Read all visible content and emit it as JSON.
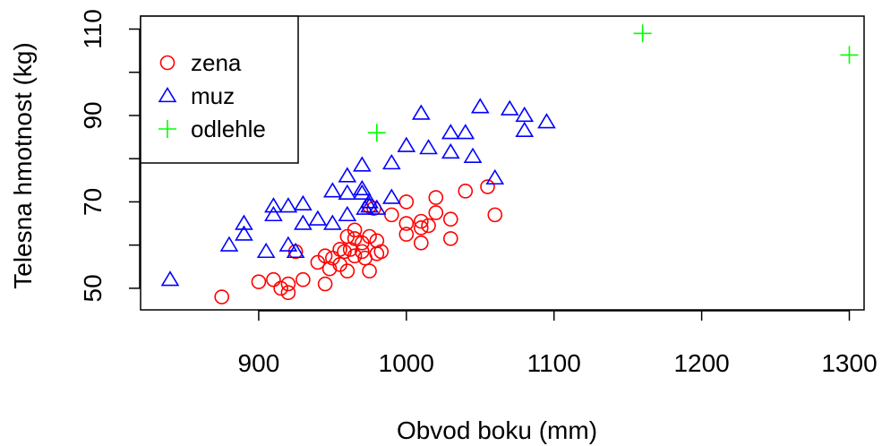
{
  "chart_data": {
    "type": "scatter",
    "title": "",
    "xlabel": "Obvod boku (mm)",
    "ylabel": "Telesna hmotnost (kg)",
    "xlim": [
      820,
      1310
    ],
    "ylim": [
      45,
      113
    ],
    "xticks": [
      900,
      1000,
      1100,
      1200,
      1300
    ],
    "yticks": [
      50,
      70,
      90,
      110
    ],
    "grid": false,
    "legend_position": "top-left",
    "series": [
      {
        "name": "zena",
        "marker": "circle",
        "color": "#ff0000",
        "points": [
          [
            875,
            48
          ],
          [
            900,
            51.5
          ],
          [
            910,
            52
          ],
          [
            915,
            50
          ],
          [
            920,
            49
          ],
          [
            920,
            51
          ],
          [
            925,
            58.5
          ],
          [
            930,
            52
          ],
          [
            940,
            56
          ],
          [
            945,
            51
          ],
          [
            945,
            57.5
          ],
          [
            948,
            54.5
          ],
          [
            950,
            57
          ],
          [
            955,
            55.5
          ],
          [
            955,
            59
          ],
          [
            958,
            58.5
          ],
          [
            960,
            62
          ],
          [
            960,
            54
          ],
          [
            962,
            59
          ],
          [
            965,
            63.5
          ],
          [
            965,
            61.5
          ],
          [
            965,
            57.5
          ],
          [
            970,
            60.5
          ],
          [
            970,
            58.5
          ],
          [
            972,
            57
          ],
          [
            975,
            62
          ],
          [
            975,
            54
          ],
          [
            975,
            69
          ],
          [
            978,
            68.5
          ],
          [
            980,
            61
          ],
          [
            980,
            58
          ],
          [
            983,
            58.5
          ],
          [
            990,
            67
          ],
          [
            1000,
            70
          ],
          [
            1000,
            65
          ],
          [
            1000,
            62.5
          ],
          [
            1010,
            65.5
          ],
          [
            1010,
            64
          ],
          [
            1010,
            60.5
          ],
          [
            1015,
            64.5
          ],
          [
            1020,
            71
          ],
          [
            1020,
            67.5
          ],
          [
            1030,
            66
          ],
          [
            1030,
            61.5
          ],
          [
            1040,
            72.5
          ],
          [
            1055,
            73.5
          ],
          [
            1060,
            67
          ]
        ]
      },
      {
        "name": "muz",
        "marker": "triangle",
        "color": "#0000ff",
        "points": [
          [
            840,
            52
          ],
          [
            880,
            60
          ],
          [
            890,
            65
          ],
          [
            890,
            62.5
          ],
          [
            905,
            58.5
          ],
          [
            910,
            69
          ],
          [
            910,
            67
          ],
          [
            920,
            60
          ],
          [
            920,
            69
          ],
          [
            925,
            58.5
          ],
          [
            930,
            69.5
          ],
          [
            930,
            65
          ],
          [
            940,
            66
          ],
          [
            950,
            72.5
          ],
          [
            950,
            65
          ],
          [
            960,
            76
          ],
          [
            960,
            72
          ],
          [
            960,
            67
          ],
          [
            970,
            78.5
          ],
          [
            970,
            73
          ],
          [
            970,
            72
          ],
          [
            972,
            68.5
          ],
          [
            975,
            70
          ],
          [
            975,
            69
          ],
          [
            980,
            68.5
          ],
          [
            990,
            79
          ],
          [
            990,
            71
          ],
          [
            1000,
            83
          ],
          [
            1010,
            90.5
          ],
          [
            1015,
            82.5
          ],
          [
            1030,
            86
          ],
          [
            1030,
            81.5
          ],
          [
            1040,
            86
          ],
          [
            1045,
            80.5
          ],
          [
            1050,
            92
          ],
          [
            1060,
            75.5
          ],
          [
            1070,
            91.5
          ],
          [
            1080,
            90
          ],
          [
            1080,
            86.5
          ],
          [
            1095,
            88.5
          ]
        ]
      },
      {
        "name": "odlehle",
        "marker": "plus",
        "color": "#00ff00",
        "points": [
          [
            980,
            86
          ],
          [
            1160,
            109
          ],
          [
            1300,
            104
          ]
        ]
      }
    ]
  }
}
